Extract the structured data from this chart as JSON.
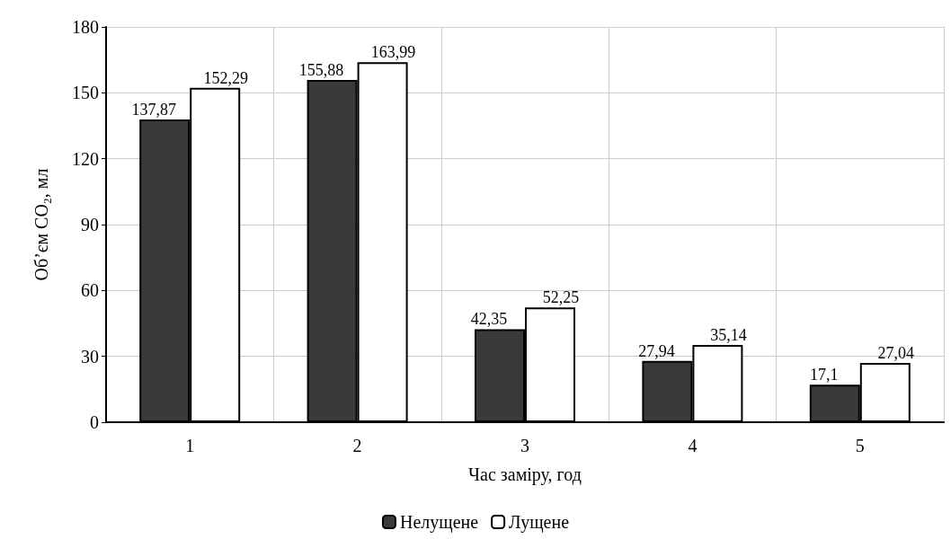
{
  "chart_data": {
    "type": "bar",
    "xlabel": "Час заміру, год",
    "ylabel": "Об’єм CO₂, мл",
    "categories": [
      "1",
      "2",
      "3",
      "4",
      "5"
    ],
    "series": [
      {
        "name": "Нелущене",
        "color": "#3a3a3a",
        "values": [
          137.87,
          155.88,
          42.35,
          27.94,
          17.1
        ],
        "value_labels": [
          "137,87",
          "155,88",
          "42,35",
          "27,94",
          "17,1"
        ]
      },
      {
        "name": "Лущене",
        "color": "#ffffff",
        "values": [
          152.29,
          163.99,
          52.25,
          35.14,
          27.04
        ],
        "value_labels": [
          "152,29",
          "163,99",
          "52,25",
          "35,14",
          "27,04"
        ]
      }
    ],
    "ylim": [
      0,
      180
    ],
    "yticks": [
      0,
      30,
      60,
      90,
      120,
      150,
      180
    ],
    "grid": true,
    "legend": "bottom"
  }
}
